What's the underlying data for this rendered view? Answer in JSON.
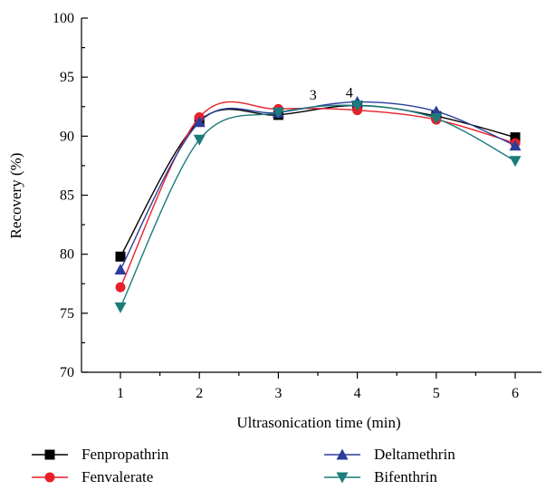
{
  "chart_data": {
    "type": "line",
    "title": "",
    "xlabel": "Ultrasonication time (min)",
    "ylabel": "Recovery (%)",
    "x": [
      1,
      2,
      3,
      4,
      5,
      6
    ],
    "x_ticks": [
      "1",
      "2",
      "3",
      "4",
      "5",
      "6"
    ],
    "xlim": [
      0.5,
      6.5
    ],
    "ylim": [
      70,
      100
    ],
    "y_ticks": [
      "70",
      "75",
      "80",
      "85",
      "90",
      "95",
      "100"
    ],
    "grid": false,
    "smooth": true,
    "legend_position": "bottom",
    "series": [
      {
        "name": "Fenpropathrin",
        "color": "#000000",
        "marker": "square",
        "values": [
          79.8,
          91.3,
          91.8,
          92.6,
          91.7,
          89.9
        ]
      },
      {
        "name": "Fenvalerate",
        "color": "#e8202a",
        "marker": "circle",
        "values": [
          77.2,
          91.6,
          92.3,
          92.2,
          91.4,
          89.4
        ]
      },
      {
        "name": "Deltamethrin",
        "color": "#2b3d9b",
        "marker": "triangle-up",
        "values": [
          78.7,
          91.2,
          92.0,
          92.9,
          92.1,
          89.2
        ]
      },
      {
        "name": "Bifenthrin",
        "color": "#1c7c7c",
        "marker": "triangle-down",
        "values": [
          75.5,
          89.7,
          92.0,
          92.6,
          91.5,
          87.9
        ]
      }
    ],
    "annotations": [
      {
        "text": "3",
        "x": 3.44,
        "y": 93.1
      },
      {
        "text": "4",
        "x": 3.9,
        "y": 93.3
      }
    ]
  }
}
